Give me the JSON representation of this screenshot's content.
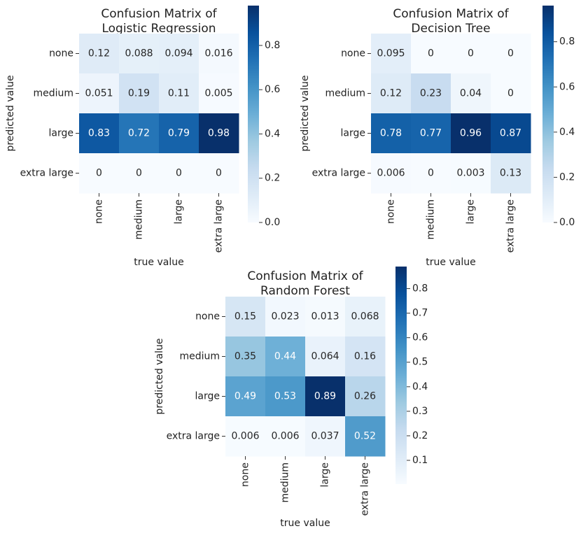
{
  "chart_data": [
    {
      "type": "heatmap",
      "title": [
        "Confusion Matrix of",
        "Logistic Regression"
      ],
      "x_label": "true value",
      "y_label": "predicted value",
      "x_categories": [
        "none",
        "medium",
        "large",
        "extra large"
      ],
      "y_categories": [
        "none",
        "medium",
        "large",
        "extra large"
      ],
      "values": [
        [
          0.12,
          0.088,
          0.094,
          0.016
        ],
        [
          0.051,
          0.19,
          0.11,
          0.005
        ],
        [
          0.83,
          0.72,
          0.79,
          0.98
        ],
        [
          0,
          0,
          0,
          0
        ]
      ],
      "zlim": [
        0,
        0.98
      ],
      "zticks": [
        {
          "value": 0,
          "label": "0.0"
        },
        0.2,
        0.4,
        0.6,
        0.8
      ],
      "colormap": [
        "#f7fbff",
        "#deebf7",
        "#c6dbef",
        "#9ecae1",
        "#6baed6",
        "#4292c6",
        "#2171b5",
        "#08519c",
        "#08306b"
      ]
    },
    {
      "type": "heatmap",
      "title": [
        "Confusion Matrix of",
        "Decision Tree"
      ],
      "x_label": "true value",
      "y_label": "predicted value",
      "x_categories": [
        "none",
        "medium",
        "large",
        "extra large"
      ],
      "y_categories": [
        "none",
        "medium",
        "large",
        "extra large"
      ],
      "values": [
        [
          0.095,
          0,
          0,
          0
        ],
        [
          0.12,
          0.23,
          0.04,
          0
        ],
        [
          0.78,
          0.77,
          0.96,
          0.87
        ],
        [
          0.006,
          0,
          0.003,
          0.13
        ]
      ],
      "zlim": [
        0,
        0.96
      ],
      "zticks": [
        {
          "value": 0,
          "label": "0.0"
        },
        0.2,
        0.4,
        0.6,
        0.8
      ],
      "colormap": [
        "#f7fbff",
        "#deebf7",
        "#c6dbef",
        "#9ecae1",
        "#6baed6",
        "#4292c6",
        "#2171b5",
        "#08519c",
        "#08306b"
      ]
    },
    {
      "type": "heatmap",
      "title": [
        "Confusion Matrix of",
        "Random Forest"
      ],
      "x_label": "true value",
      "y_label": "predicted value",
      "x_categories": [
        "none",
        "medium",
        "large",
        "extra large"
      ],
      "y_categories": [
        "none",
        "medium",
        "large",
        "extra large"
      ],
      "values": [
        [
          0.15,
          0.023,
          0.013,
          0.068
        ],
        [
          0.35,
          0.44,
          0.064,
          0.16
        ],
        [
          0.49,
          0.53,
          0.89,
          0.26
        ],
        [
          0.006,
          0.006,
          0.037,
          0.52
        ]
      ],
      "zlim": [
        0.003,
        0.89
      ],
      "zticks": [
        0.1,
        0.2,
        0.3,
        0.4,
        0.5,
        0.6,
        0.7,
        0.8
      ],
      "colormap": [
        "#f7fbff",
        "#deebf7",
        "#c6dbef",
        "#9ecae1",
        "#6baed6",
        "#4292c6",
        "#2171b5",
        "#08519c",
        "#08306b"
      ]
    }
  ]
}
